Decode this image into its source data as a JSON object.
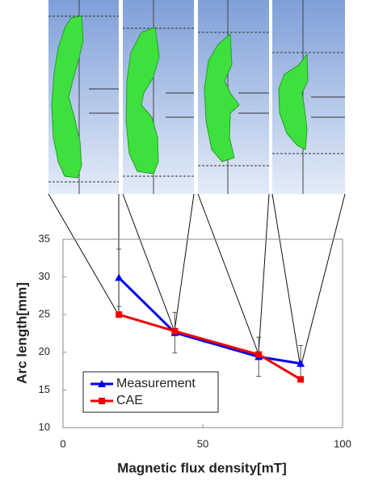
{
  "chart_data": {
    "type": "line",
    "x_label": "Magnetic flux density[mT]",
    "y_label": "Arc length[mm]",
    "x": [
      20,
      40,
      70,
      85
    ],
    "series": [
      {
        "name": "Measurement",
        "color": "#0000ee",
        "marker": "triangle",
        "values": [
          29.9,
          22.6,
          19.4,
          18.5
        ],
        "errors": [
          3.8,
          2.7,
          2.6,
          2.4
        ]
      },
      {
        "name": "CAE",
        "color": "#ee0000",
        "marker": "square",
        "values": [
          25.0,
          22.8,
          19.7,
          16.4
        ]
      }
    ],
    "xlim": [
      0,
      100
    ],
    "xticks": [
      0,
      50,
      100
    ],
    "ylim": [
      10,
      35
    ],
    "yticks": [
      10,
      15,
      20,
      25,
      30,
      35
    ],
    "grid": false,
    "legend": "lower left"
  }
}
